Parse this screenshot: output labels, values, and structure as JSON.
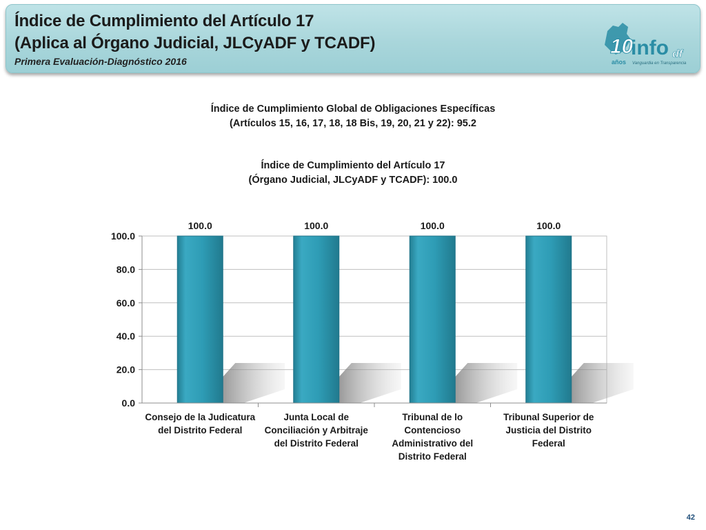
{
  "header": {
    "title_line1": "Índice de Cumplimiento del Artículo 17",
    "title_line2": "(Aplica al Órgano Judicial, JLCyADF y TCADF)",
    "subtitle": "Primera Evaluación-Diagnóstico 2016",
    "logo": {
      "number": "10",
      "years": "años",
      "brand": "info",
      "suffix": "df",
      "tagline": "Vanguardia en Transparencia"
    }
  },
  "global_index": {
    "line1": "Índice de Cumplimiento Global de Obligaciones Específicas",
    "line2": "(Artículos 15, 16, 17, 18, 18 Bis, 19, 20, 21 y 22): 95.2"
  },
  "article_index": {
    "line1": "Índice de Cumplimiento del Artículo 17",
    "line2": "(Órgano Judicial, JLCyADF y TCADF): 100.0"
  },
  "chart_data": {
    "type": "bar",
    "categories": [
      [
        "Consejo de la Judicatura",
        "del Distrito Federal"
      ],
      [
        "Junta Local de",
        "Conciliación y Arbitraje",
        "del Distrito Federal"
      ],
      [
        "Tribunal de lo",
        "Contencioso",
        "Administrativo del",
        "Distrito Federal"
      ],
      [
        "Tribunal Superior de",
        "Justicia del Distrito",
        "Federal"
      ]
    ],
    "values": [
      100.0,
      100.0,
      100.0,
      100.0
    ],
    "data_labels": [
      "100.0",
      "100.0",
      "100.0",
      "100.0"
    ],
    "ylim": [
      0,
      100
    ],
    "yticks": [
      "0.0",
      "20.0",
      "40.0",
      "60.0",
      "80.0",
      "100.0"
    ],
    "ytick_values": [
      0,
      20,
      40,
      60,
      80,
      100
    ],
    "grid": true,
    "bar_color": "#2e9cb5"
  },
  "page_number": "42"
}
